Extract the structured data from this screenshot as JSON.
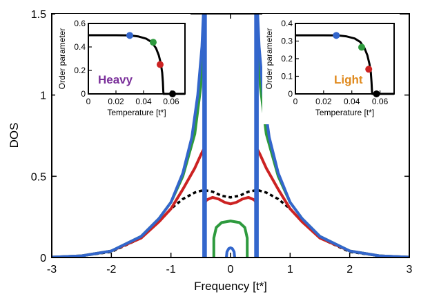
{
  "chart_data": {
    "type": "line",
    "xlabel": "Frequency [t*]",
    "ylabel": "DOS",
    "xlim": [
      -3,
      3
    ],
    "ylim": [
      0,
      1.5
    ],
    "xticks": [
      "-3",
      "-2",
      "-1",
      "0",
      "1",
      "2",
      "3"
    ],
    "yticks": [
      "0",
      "0.5",
      "1",
      "1.5"
    ],
    "grid": false,
    "series": [
      {
        "color": "#000000",
        "dashed": true,
        "points": [
          [
            -3,
            0.002
          ],
          [
            -2.5,
            0.01
          ],
          [
            -2,
            0.035
          ],
          [
            -1.5,
            0.12
          ],
          [
            -1.2,
            0.22
          ],
          [
            -1.0,
            0.3
          ],
          [
            -0.8,
            0.36
          ],
          [
            -0.6,
            0.4
          ],
          [
            -0.45,
            0.415
          ],
          [
            -0.3,
            0.405
          ],
          [
            -0.15,
            0.38
          ],
          [
            0,
            0.37
          ],
          [
            0.15,
            0.38
          ],
          [
            0.3,
            0.405
          ],
          [
            0.45,
            0.415
          ],
          [
            0.6,
            0.4
          ],
          [
            0.8,
            0.36
          ],
          [
            1.0,
            0.3
          ],
          [
            1.2,
            0.22
          ],
          [
            1.5,
            0.12
          ],
          [
            2,
            0.035
          ],
          [
            2.5,
            0.01
          ],
          [
            3,
            0.002
          ]
        ]
      },
      {
        "color": "#cc2222",
        "points": [
          [
            -3,
            0.002
          ],
          [
            -2.5,
            0.01
          ],
          [
            -2,
            0.04
          ],
          [
            -1.5,
            0.12
          ],
          [
            -1.2,
            0.22
          ],
          [
            -1.0,
            0.3
          ],
          [
            -0.8,
            0.42
          ],
          [
            -0.6,
            0.55
          ],
          [
            -0.5,
            0.63
          ],
          [
            -0.46,
            0.66
          ],
          [
            -0.44,
            0.6
          ],
          [
            -0.44,
            0.17
          ],
          [
            -0.44,
            0.33
          ],
          [
            -0.4,
            0.355
          ],
          [
            -0.3,
            0.37
          ],
          [
            -0.2,
            0.36
          ],
          [
            -0.1,
            0.34
          ],
          [
            0,
            0.33
          ],
          [
            0.1,
            0.34
          ],
          [
            0.2,
            0.36
          ],
          [
            0.3,
            0.37
          ],
          [
            0.4,
            0.355
          ],
          [
            0.44,
            0.33
          ],
          [
            0.44,
            0.17
          ],
          [
            0.44,
            0.6
          ],
          [
            0.46,
            0.66
          ],
          [
            0.5,
            0.63
          ],
          [
            0.6,
            0.55
          ],
          [
            0.8,
            0.42
          ],
          [
            1.0,
            0.3
          ],
          [
            1.2,
            0.22
          ],
          [
            1.5,
            0.12
          ],
          [
            2,
            0.04
          ],
          [
            2.5,
            0.01
          ],
          [
            3,
            0.002
          ]
        ]
      },
      {
        "color": "#2e9a3e",
        "points": [
          [
            -3,
            0.002
          ],
          [
            -2.5,
            0.01
          ],
          [
            -2,
            0.04
          ],
          [
            -1.5,
            0.13
          ],
          [
            -1.2,
            0.24
          ],
          [
            -1.0,
            0.34
          ],
          [
            -0.8,
            0.5
          ],
          [
            -0.6,
            0.76
          ],
          [
            -0.5,
            1.05
          ],
          [
            -0.46,
            1.35
          ],
          [
            -0.44,
            1.5
          ]
        ]
      },
      {
        "color": "#2e9a3e",
        "points": [
          [
            0.44,
            1.5
          ],
          [
            0.46,
            1.35
          ],
          [
            0.5,
            1.05
          ],
          [
            0.6,
            0.76
          ],
          [
            0.8,
            0.5
          ],
          [
            1.0,
            0.34
          ],
          [
            1.2,
            0.24
          ],
          [
            1.5,
            0.13
          ],
          [
            2,
            0.04
          ],
          [
            2.5,
            0.01
          ],
          [
            3,
            0.002
          ]
        ]
      },
      {
        "color": "#2e9a3e",
        "points": [
          [
            -0.28,
            0
          ],
          [
            -0.28,
            0.12
          ],
          [
            -0.24,
            0.185
          ],
          [
            -0.15,
            0.215
          ],
          [
            0,
            0.225
          ],
          [
            0.15,
            0.215
          ],
          [
            0.24,
            0.185
          ],
          [
            0.28,
            0.12
          ],
          [
            0.28,
            0
          ]
        ]
      },
      {
        "color": "#3366cc",
        "points": [
          [
            -3,
            0.002
          ],
          [
            -2.5,
            0.01
          ],
          [
            -2,
            0.04
          ],
          [
            -1.5,
            0.13
          ],
          [
            -1.2,
            0.24
          ],
          [
            -1.0,
            0.34
          ],
          [
            -0.8,
            0.52
          ],
          [
            -0.65,
            0.74
          ],
          [
            -0.55,
            1.0
          ],
          [
            -0.48,
            1.3
          ],
          [
            -0.455,
            1.5
          ]
        ]
      },
      {
        "color": "#3366cc",
        "points": [
          [
            0.455,
            1.5
          ],
          [
            0.48,
            1.3
          ],
          [
            0.55,
            1.0
          ],
          [
            0.65,
            0.74
          ],
          [
            0.8,
            0.52
          ],
          [
            1.0,
            0.34
          ],
          [
            1.2,
            0.24
          ],
          [
            1.5,
            0.13
          ],
          [
            2,
            0.04
          ],
          [
            2.5,
            0.01
          ],
          [
            3,
            0.002
          ]
        ]
      },
      {
        "color": "#3366cc",
        "points": [
          [
            -0.45,
            0
          ],
          [
            -0.45,
            1.5
          ]
        ]
      },
      {
        "color": "#3366cc",
        "points": [
          [
            0.45,
            0
          ],
          [
            0.45,
            1.5
          ]
        ]
      },
      {
        "color": "#3366cc",
        "points": [
          [
            -0.42,
            1.5
          ],
          [
            -0.42,
            0
          ]
        ]
      },
      {
        "color": "#3366cc",
        "points": [
          [
            0.42,
            1.5
          ],
          [
            0.42,
            0
          ]
        ]
      },
      {
        "color": "#3366cc",
        "points": [
          [
            -0.07,
            0
          ],
          [
            -0.06,
            0.035
          ],
          [
            -0.03,
            0.055
          ],
          [
            0,
            0.06
          ],
          [
            0.03,
            0.055
          ],
          [
            0.06,
            0.035
          ],
          [
            0.07,
            0
          ]
        ]
      }
    ],
    "insets": [
      {
        "name": "Heavy",
        "name_color": "#7a2f9a",
        "xlabel": "Temperature [t*]",
        "ylabel": "Order parameter",
        "xlim": [
          0,
          0.07
        ],
        "ylim": [
          0,
          0.6
        ],
        "xticks": [
          "0",
          "0.02",
          "0.04",
          "0.06"
        ],
        "yticks": [
          "0",
          "0.2",
          "0.4",
          "0.6"
        ],
        "curve": [
          [
            0,
            0.5
          ],
          [
            0.01,
            0.5
          ],
          [
            0.02,
            0.5
          ],
          [
            0.03,
            0.498
          ],
          [
            0.036,
            0.49
          ],
          [
            0.042,
            0.47
          ],
          [
            0.046,
            0.44
          ],
          [
            0.049,
            0.39
          ],
          [
            0.051,
            0.33
          ],
          [
            0.0525,
            0.26
          ],
          [
            0.0535,
            0.18
          ],
          [
            0.054,
            0.1
          ],
          [
            0.0543,
            0.02
          ],
          [
            0.0545,
            0
          ],
          [
            0.07,
            0
          ]
        ],
        "markers": [
          {
            "t": 0.03,
            "v": 0.498,
            "color": "#3366cc"
          },
          {
            "t": 0.047,
            "v": 0.44,
            "color": "#2e9a3e"
          },
          {
            "t": 0.052,
            "v": 0.25,
            "color": "#cc2222"
          },
          {
            "t": 0.061,
            "v": 0.0,
            "color": "#000000"
          }
        ]
      },
      {
        "name": "Light",
        "name_color": "#e08a1e",
        "xlabel": "Temperature [t*]",
        "ylabel": "Order parameter",
        "xlim": [
          0,
          0.07
        ],
        "ylim": [
          0,
          0.4
        ],
        "xticks": [
          "0",
          "0.02",
          "0.04",
          "0.06"
        ],
        "yticks": [
          "0",
          "0.1",
          "0.2",
          "0.3",
          "0.4"
        ],
        "curve": [
          [
            0,
            0.333
          ],
          [
            0.01,
            0.333
          ],
          [
            0.02,
            0.333
          ],
          [
            0.03,
            0.332
          ],
          [
            0.036,
            0.327
          ],
          [
            0.042,
            0.315
          ],
          [
            0.046,
            0.295
          ],
          [
            0.049,
            0.26
          ],
          [
            0.051,
            0.22
          ],
          [
            0.0525,
            0.17
          ],
          [
            0.0535,
            0.12
          ],
          [
            0.054,
            0.065
          ],
          [
            0.0543,
            0.02
          ],
          [
            0.0545,
            0
          ],
          [
            0.07,
            0
          ]
        ],
        "markers": [
          {
            "t": 0.029,
            "v": 0.332,
            "color": "#3366cc"
          },
          {
            "t": 0.047,
            "v": 0.265,
            "color": "#2e9a3e"
          },
          {
            "t": 0.052,
            "v": 0.14,
            "color": "#cc2222"
          },
          {
            "t": 0.0575,
            "v": 0.0,
            "color": "#000000"
          }
        ]
      }
    ]
  }
}
